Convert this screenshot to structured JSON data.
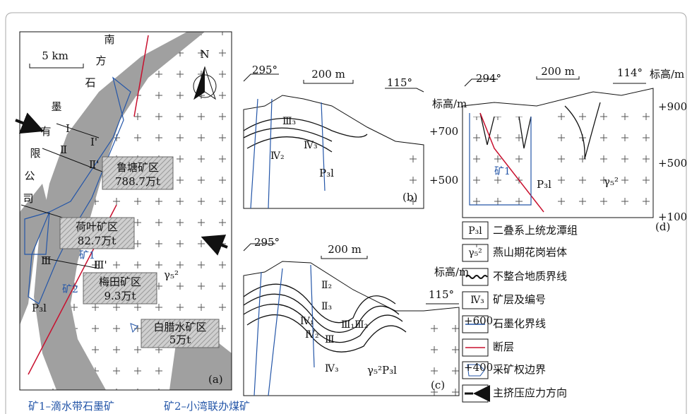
{
  "panel_a": {
    "scale": "5 km",
    "north": "N",
    "company": [
      "南",
      "方",
      "石",
      "墨",
      "有",
      "限",
      "公",
      "司"
    ],
    "sections": [
      "Ⅰ",
      "Ⅰ'",
      "Ⅱ",
      "Ⅱ'",
      "Ⅲ",
      "Ⅲ'"
    ],
    "districts": [
      {
        "name": "鲁塘矿区",
        "reserve": "788.7万t"
      },
      {
        "name": "荷叶矿区",
        "reserve": "82.7万t"
      },
      {
        "name": "梅田矿区",
        "reserve": "9.3万t"
      },
      {
        "name": "白腊水矿区",
        "reserve": "5万t"
      }
    ],
    "mines": [
      "矿1",
      "矿2"
    ],
    "strata": "P₃l",
    "granite": "γ₅²",
    "label": "(a)"
  },
  "caption": [
    "矿1–滴水带石墨矿",
    "矿2–小湾联办煤矿"
  ],
  "panel_b": {
    "bearings": [
      "295°",
      "115°"
    ],
    "scale": "200 m",
    "axis_title": "标高/m",
    "elevations": [
      "+700",
      "+500"
    ],
    "layers": [
      "Ⅲ₃",
      "Ⅳ₂",
      "Ⅳ₃"
    ],
    "strata": "P₃l",
    "label": "(b)"
  },
  "panel_d": {
    "bearings": [
      "294°",
      "114°"
    ],
    "scale": "200 m",
    "axis_title": "标高/m",
    "elevations": [
      "+900",
      "+500",
      "+100"
    ],
    "strata": "P₃l",
    "granite": "γ₅²",
    "mine": "矿1",
    "label": "(d)"
  },
  "panel_c": {
    "bearings": [
      "295°",
      "115°"
    ],
    "scale": "200 m",
    "axis_title": "标高/m",
    "elevations": [
      "+600",
      "+400"
    ],
    "layers": [
      "Ⅱ₂",
      "Ⅱ₃",
      "Ⅳ₁",
      "Ⅲ₁Ⅲ₂",
      "Ⅳ₂",
      "Ⅲ",
      "Ⅳ₃"
    ],
    "strata": "γ₅²P₃l",
    "label": "(c)"
  },
  "legend": [
    {
      "symbol": "P₃l",
      "text": "二叠系上统龙潭组"
    },
    {
      "symbol": "γ₅²",
      "text": "燕山期花岗岩体"
    },
    {
      "text": "不整合地质界线"
    },
    {
      "symbol": "Ⅳ₃",
      "text": "矿层及编号"
    },
    {
      "text": "石墨化界线"
    },
    {
      "text": "断层"
    },
    {
      "text": "采矿权边界"
    },
    {
      "text": "主挤压应力方向"
    }
  ]
}
